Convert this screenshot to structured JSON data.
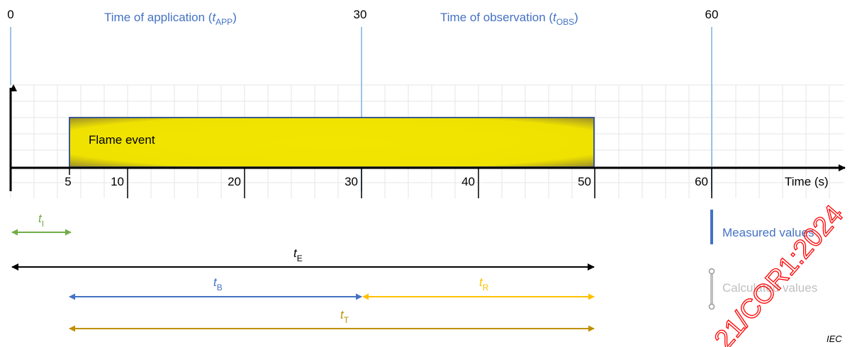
{
  "top_markers": {
    "m0": "0",
    "m30": "30",
    "m60": "60"
  },
  "phases": {
    "application_prefix": "Time of application  (",
    "application_var": "t",
    "application_sub": "APP",
    "application_suffix": ")",
    "observation_prefix": "Time of observation  (",
    "observation_var": "t",
    "observation_sub": "OBS",
    "observation_suffix": ")"
  },
  "event": {
    "label": "Flame event",
    "start": 5,
    "end": 50
  },
  "axis": {
    "label": "Time  (s)",
    "ticks": [
      "5",
      "10",
      "20",
      "30",
      "40",
      "50",
      "60"
    ]
  },
  "intervals": {
    "tI": {
      "var": "t",
      "sub": "I"
    },
    "tE": {
      "var": "t",
      "sub": "E"
    },
    "tB": {
      "var": "t",
      "sub": "B"
    },
    "tR": {
      "var": "t",
      "sub": "R"
    },
    "tT": {
      "var": "t",
      "sub": "T"
    }
  },
  "legend": {
    "measured": "Measured values",
    "calculated": "Calculated values"
  },
  "watermark": "21/COR1:2024",
  "source": "IEC",
  "colors": {
    "grid": "#e6e6e6",
    "vline": "#9dc3e6",
    "text_blue": "#4472c4",
    "flame_fill": "#f2e600",
    "flame_border": "#3a5a8c",
    "green": "#70ad47",
    "blue_arrow": "#4472c4",
    "orange": "#ffc000",
    "gold": "#bf9000",
    "black": "#000000",
    "gray": "#bfbfbf",
    "red_watermark": "#ff0000"
  }
}
